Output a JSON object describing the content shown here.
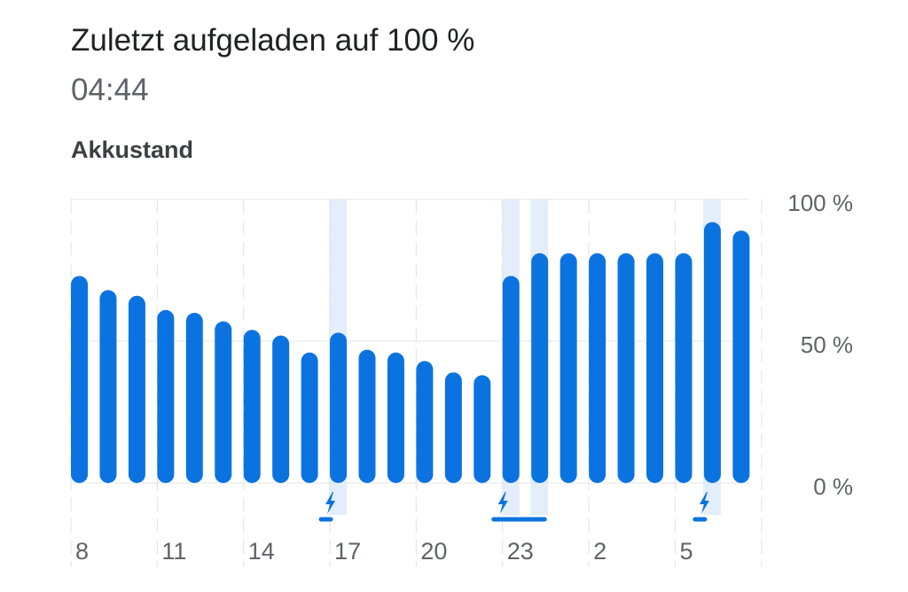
{
  "header": {
    "title": "Zuletzt aufgeladen auf 100 %",
    "time": "04:44"
  },
  "section_title": "Akkustand",
  "chart_data": {
    "type": "bar",
    "title": "Akkustand",
    "ylim": [
      0,
      100
    ],
    "yticks": [
      "100 %",
      "50 %",
      "0 %"
    ],
    "ytick_values": [
      100,
      50,
      0
    ],
    "xtick_labels": [
      "8",
      "11",
      "14",
      "17",
      "20",
      "23",
      "2",
      "5"
    ],
    "bar_hours_start": 8,
    "values": [
      73,
      68,
      66,
      61,
      60,
      57,
      54,
      52,
      46,
      53,
      47,
      46,
      43,
      39,
      38,
      73,
      81,
      81,
      81,
      81,
      81,
      81,
      92,
      89
    ],
    "charging_bars": [
      9,
      15,
      16,
      22
    ],
    "charging_markers": [
      {
        "start": 9,
        "end": 9
      },
      {
        "start": 15,
        "end": 16
      },
      {
        "start": 22,
        "end": 22
      }
    ],
    "colors": {
      "bar": "#0b73e0",
      "charging_band": "#e3eefb",
      "grid": "#e6e6e6"
    }
  }
}
